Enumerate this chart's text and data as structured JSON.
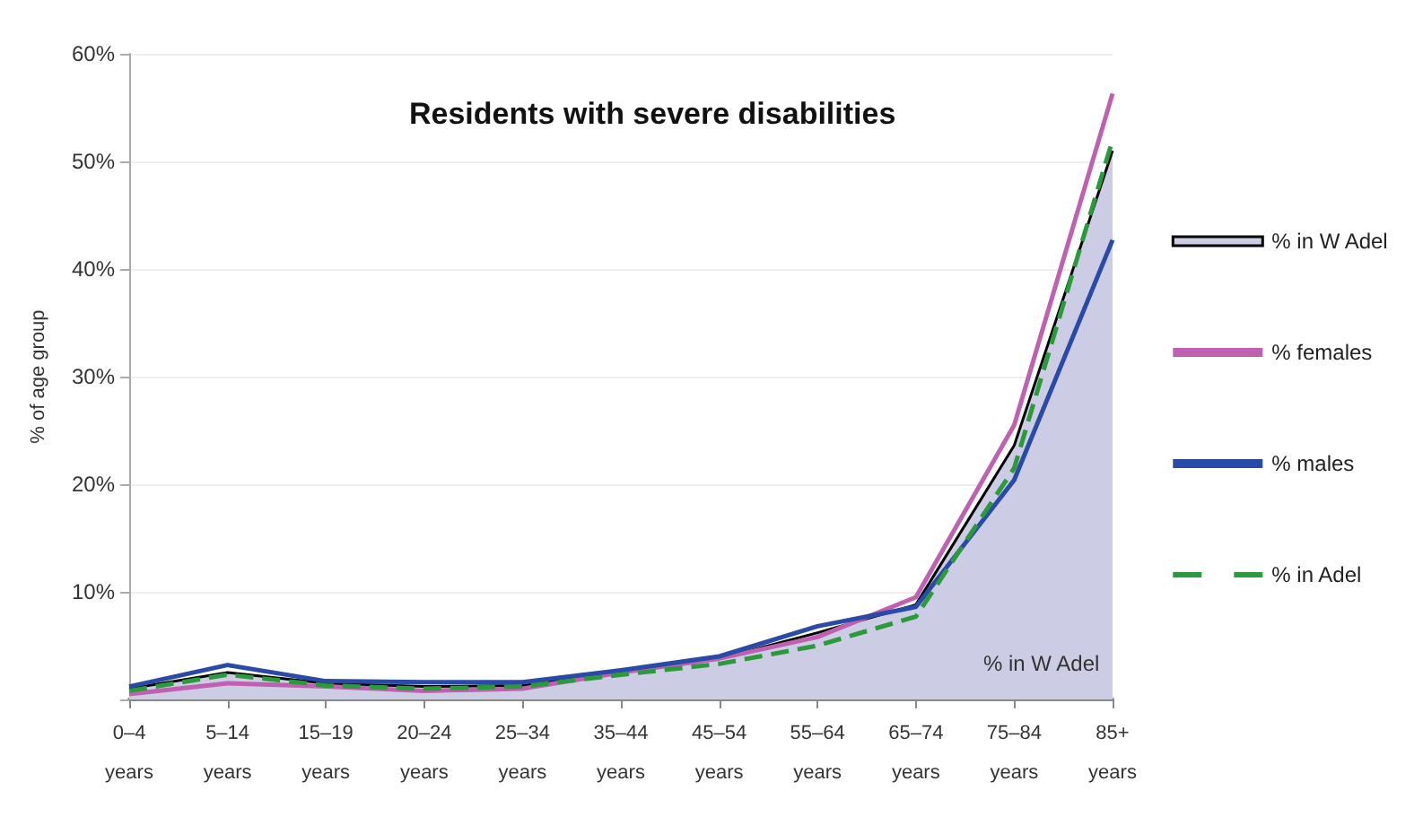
{
  "chart_data": {
    "type": "line",
    "title": "Residents with severe disabilities",
    "ylabel": "% of age group",
    "categories": [
      "0–4\nyears",
      "5–14\nyears",
      "15–19\nyears",
      "20–24\nyears",
      "25–34\nyears",
      "35–44\nyears",
      "45–54\nyears",
      "55–64\nyears",
      "65–74\nyears",
      "75–84\nyears",
      "85+\nyears"
    ],
    "series": [
      {
        "name": "% in W Adel",
        "type": "area",
        "color": "#ccccE4",
        "values": [
          1,
          2.5,
          1.5,
          1.2,
          1.3,
          2.5,
          3.8,
          6.2,
          8.8,
          23.6,
          51
        ]
      },
      {
        "name": "% females",
        "color": "#c060b0",
        "values": [
          0.5,
          1.5,
          1.2,
          0.8,
          1.0,
          2.5,
          3.8,
          5.8,
          9.5,
          25.5,
          56.3
        ]
      },
      {
        "name": "% males",
        "color": "#2a4aa8",
        "values": [
          1.2,
          3.2,
          1.7,
          1.6,
          1.6,
          2.7,
          4.0,
          6.8,
          8.6,
          20.4,
          42.7
        ]
      },
      {
        "name": "% in Adel",
        "color": "#2a9a3a",
        "line_style": "dashed",
        "values": [
          0.8,
          2.3,
          1.3,
          1.0,
          1.2,
          2.3,
          3.3,
          5.0,
          7.7,
          21.5,
          52
        ]
      }
    ],
    "ylim": [
      0,
      60
    ],
    "yticks": [
      {
        "value": 0,
        "label": null
      },
      {
        "value": 10,
        "label": "10%"
      },
      {
        "value": 20,
        "label": "20%"
      },
      {
        "value": 30,
        "label": "30%"
      },
      {
        "value": 40,
        "label": "40%"
      },
      {
        "value": 50,
        "label": "50%"
      },
      {
        "value": 60,
        "label": "60%"
      }
    ],
    "grid": "y",
    "legend": "right",
    "marker": "none",
    "annotations": [
      "% in W Adel"
    ]
  }
}
